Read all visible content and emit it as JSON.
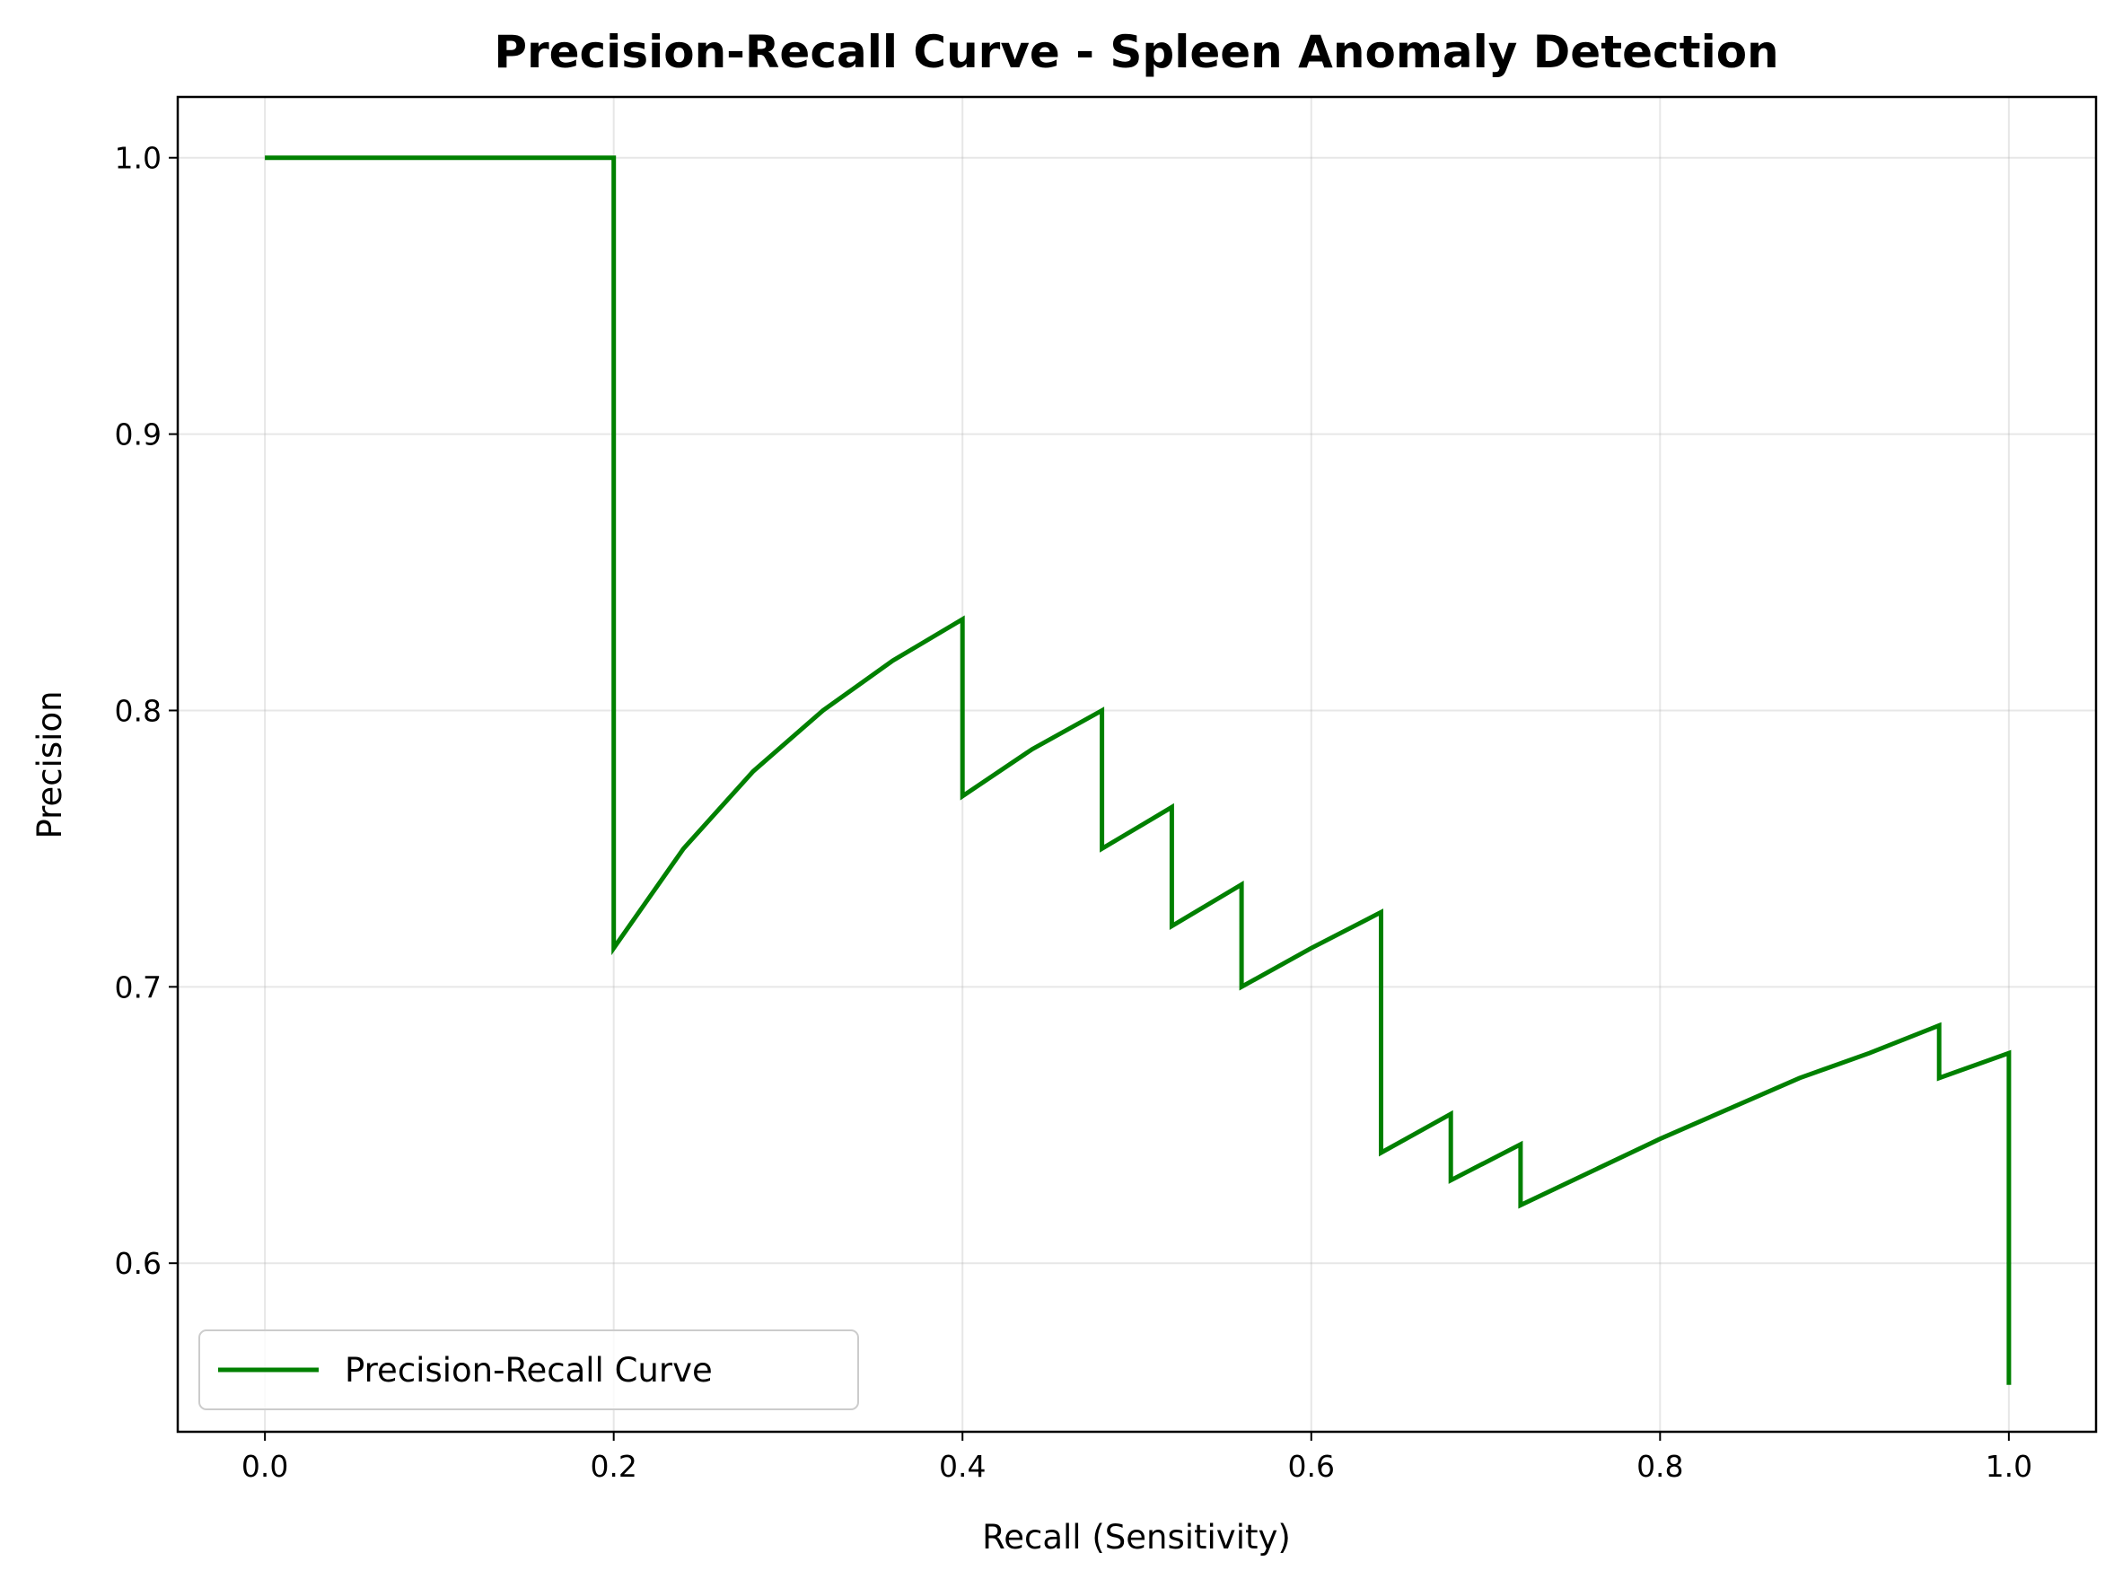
{
  "chart_data": {
    "type": "line",
    "title": "Precision-Recall Curve - Spleen Anomaly Detection",
    "xlabel": "Recall (Sensitivity)",
    "ylabel": "Precision",
    "xlim": [
      -0.05,
      1.05
    ],
    "ylim": [
      0.539,
      1.022
    ],
    "xticks": [
      0.0,
      0.2,
      0.4,
      0.6,
      0.8,
      1.0
    ],
    "xtick_labels": [
      "0.0",
      "0.2",
      "0.4",
      "0.6",
      "0.8",
      "1.0"
    ],
    "yticks": [
      0.6,
      0.7,
      0.8,
      0.9,
      1.0
    ],
    "ytick_labels": [
      "0.6",
      "0.7",
      "0.8",
      "0.9",
      "1.0"
    ],
    "grid": true,
    "legend_position": "lower-left",
    "colors": {
      "line": "#008000",
      "axes": "#000000",
      "grid": "#b0b0b0"
    },
    "series": [
      {
        "name": "Precision-Recall Curve",
        "x": [
          0.0,
          0.2,
          0.2,
          0.24,
          0.28,
          0.32,
          0.36,
          0.4,
          0.4,
          0.44,
          0.48,
          0.48,
          0.52,
          0.52,
          0.56,
          0.56,
          0.6,
          0.64,
          0.64,
          0.68,
          0.68,
          0.72,
          0.72,
          0.76,
          0.8,
          0.84,
          0.88,
          0.92,
          0.96,
          0.96,
          1.0,
          1.0
        ],
        "y": [
          1.0,
          1.0,
          0.714,
          0.75,
          0.778,
          0.8,
          0.818,
          0.833,
          0.769,
          0.786,
          0.8,
          0.75,
          0.765,
          0.722,
          0.737,
          0.7,
          0.714,
          0.727,
          0.64,
          0.654,
          0.63,
          0.643,
          0.621,
          0.633,
          0.645,
          0.656,
          0.667,
          0.676,
          0.686,
          0.667,
          0.676,
          0.556
        ]
      }
    ]
  }
}
